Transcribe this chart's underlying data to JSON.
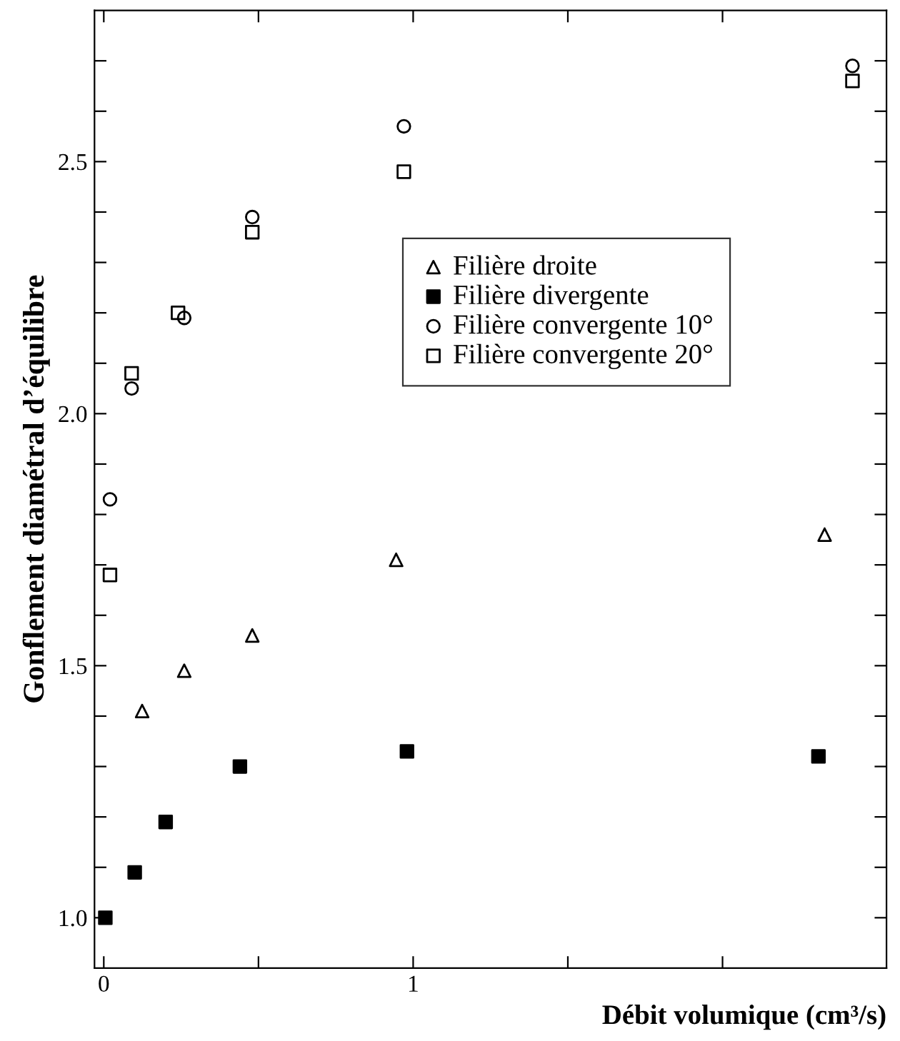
{
  "chart_data": {
    "type": "scatter",
    "xlabel": "Débit volumique (cm³/s)",
    "ylabel": "Gonflement diamétral d’équilibre",
    "xlim": [
      -0.03,
      2.53
    ],
    "ylim": [
      0.9,
      2.8
    ],
    "xticks": [
      0,
      {
        "value": 0.5,
        "label": null
      },
      1,
      {
        "value": 1.5,
        "label": null
      },
      {
        "value": 2,
        "label": null
      }
    ],
    "yticks": [
      {
        "value": 1.0,
        "label": "1.0"
      },
      {
        "value": 1.1,
        "label": null
      },
      {
        "value": 1.2,
        "label": null
      },
      {
        "value": 1.3,
        "label": null
      },
      {
        "value": 1.4,
        "label": null
      },
      {
        "value": 1.5,
        "label": "1.5"
      },
      {
        "value": 1.6,
        "label": null
      },
      {
        "value": 1.7,
        "label": null
      },
      {
        "value": 1.8,
        "label": null
      },
      {
        "value": 1.9,
        "label": null
      },
      {
        "value": 2.0,
        "label": "2.0"
      },
      {
        "value": 2.1,
        "label": null
      },
      {
        "value": 2.2,
        "label": null
      },
      {
        "value": 2.3,
        "label": null
      },
      {
        "value": 2.4,
        "label": null
      },
      {
        "value": 2.5,
        "label": "2.5"
      },
      {
        "value": 2.6,
        "label": null
      },
      {
        "value": 2.7,
        "label": null
      }
    ],
    "legend": "center right",
    "grid": false,
    "series": [
      {
        "name": "Filière droite",
        "color": "#000000",
        "marker": "triangle",
        "x": [
          0.124,
          0.26,
          0.48,
          0.945,
          2.33
        ],
        "values": [
          1.41,
          1.49,
          1.56,
          1.71,
          1.76
        ]
      },
      {
        "name": "Filière divergente",
        "color": "#000000",
        "marker": "square",
        "x": [
          0.005,
          0.1,
          0.2,
          0.44,
          0.98,
          2.31
        ],
        "values": [
          1.0,
          1.09,
          1.19,
          1.3,
          1.33,
          1.32
        ]
      },
      {
        "name": "Filière convergente 10°",
        "color": "#000000",
        "marker": "circle",
        "x": [
          0.02,
          0.09,
          0.26,
          0.48,
          0.97,
          2.42
        ],
        "values": [
          1.83,
          2.05,
          2.19,
          2.39,
          2.57,
          2.69
        ]
      },
      {
        "name": "Filière convergente 20°",
        "color": "#000000",
        "marker": "square",
        "x": [
          0.02,
          0.09,
          0.24,
          0.48,
          0.97,
          2.42
        ],
        "values": [
          1.68,
          2.08,
          2.2,
          2.36,
          2.48,
          2.66
        ]
      }
    ]
  }
}
